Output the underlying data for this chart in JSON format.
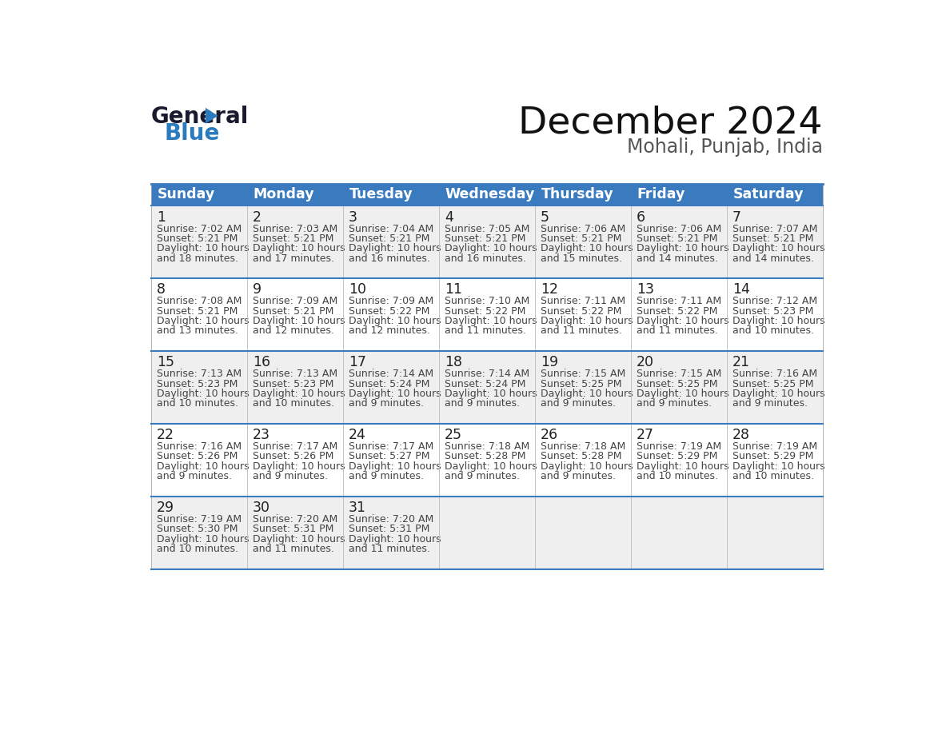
{
  "title": "December 2024",
  "subtitle": "Mohali, Punjab, India",
  "header_bg_color": "#3A7BBF",
  "header_text_color": "#FFFFFF",
  "cell_bg_even": "#EFEFEF",
  "cell_bg_odd": "#FFFFFF",
  "row_line_color": "#3A7BBF",
  "text_color": "#444444",
  "days_of_week": [
    "Sunday",
    "Monday",
    "Tuesday",
    "Wednesday",
    "Thursday",
    "Friday",
    "Saturday"
  ],
  "calendar_data": [
    [
      {
        "day": 1,
        "sunrise": "7:02 AM",
        "sunset": "5:21 PM",
        "daylight_h": "10 hours",
        "daylight_m": "and 18 minutes."
      },
      {
        "day": 2,
        "sunrise": "7:03 AM",
        "sunset": "5:21 PM",
        "daylight_h": "10 hours",
        "daylight_m": "and 17 minutes."
      },
      {
        "day": 3,
        "sunrise": "7:04 AM",
        "sunset": "5:21 PM",
        "daylight_h": "10 hours",
        "daylight_m": "and 16 minutes."
      },
      {
        "day": 4,
        "sunrise": "7:05 AM",
        "sunset": "5:21 PM",
        "daylight_h": "10 hours",
        "daylight_m": "and 16 minutes."
      },
      {
        "day": 5,
        "sunrise": "7:06 AM",
        "sunset": "5:21 PM",
        "daylight_h": "10 hours",
        "daylight_m": "and 15 minutes."
      },
      {
        "day": 6,
        "sunrise": "7:06 AM",
        "sunset": "5:21 PM",
        "daylight_h": "10 hours",
        "daylight_m": "and 14 minutes."
      },
      {
        "day": 7,
        "sunrise": "7:07 AM",
        "sunset": "5:21 PM",
        "daylight_h": "10 hours",
        "daylight_m": "and 14 minutes."
      }
    ],
    [
      {
        "day": 8,
        "sunrise": "7:08 AM",
        "sunset": "5:21 PM",
        "daylight_h": "10 hours",
        "daylight_m": "and 13 minutes."
      },
      {
        "day": 9,
        "sunrise": "7:09 AM",
        "sunset": "5:21 PM",
        "daylight_h": "10 hours",
        "daylight_m": "and 12 minutes."
      },
      {
        "day": 10,
        "sunrise": "7:09 AM",
        "sunset": "5:22 PM",
        "daylight_h": "10 hours",
        "daylight_m": "and 12 minutes."
      },
      {
        "day": 11,
        "sunrise": "7:10 AM",
        "sunset": "5:22 PM",
        "daylight_h": "10 hours",
        "daylight_m": "and 11 minutes."
      },
      {
        "day": 12,
        "sunrise": "7:11 AM",
        "sunset": "5:22 PM",
        "daylight_h": "10 hours",
        "daylight_m": "and 11 minutes."
      },
      {
        "day": 13,
        "sunrise": "7:11 AM",
        "sunset": "5:22 PM",
        "daylight_h": "10 hours",
        "daylight_m": "and 11 minutes."
      },
      {
        "day": 14,
        "sunrise": "7:12 AM",
        "sunset": "5:23 PM",
        "daylight_h": "10 hours",
        "daylight_m": "and 10 minutes."
      }
    ],
    [
      {
        "day": 15,
        "sunrise": "7:13 AM",
        "sunset": "5:23 PM",
        "daylight_h": "10 hours",
        "daylight_m": "and 10 minutes."
      },
      {
        "day": 16,
        "sunrise": "7:13 AM",
        "sunset": "5:23 PM",
        "daylight_h": "10 hours",
        "daylight_m": "and 10 minutes."
      },
      {
        "day": 17,
        "sunrise": "7:14 AM",
        "sunset": "5:24 PM",
        "daylight_h": "10 hours",
        "daylight_m": "and 9 minutes."
      },
      {
        "day": 18,
        "sunrise": "7:14 AM",
        "sunset": "5:24 PM",
        "daylight_h": "10 hours",
        "daylight_m": "and 9 minutes."
      },
      {
        "day": 19,
        "sunrise": "7:15 AM",
        "sunset": "5:25 PM",
        "daylight_h": "10 hours",
        "daylight_m": "and 9 minutes."
      },
      {
        "day": 20,
        "sunrise": "7:15 AM",
        "sunset": "5:25 PM",
        "daylight_h": "10 hours",
        "daylight_m": "and 9 minutes."
      },
      {
        "day": 21,
        "sunrise": "7:16 AM",
        "sunset": "5:25 PM",
        "daylight_h": "10 hours",
        "daylight_m": "and 9 minutes."
      }
    ],
    [
      {
        "day": 22,
        "sunrise": "7:16 AM",
        "sunset": "5:26 PM",
        "daylight_h": "10 hours",
        "daylight_m": "and 9 minutes."
      },
      {
        "day": 23,
        "sunrise": "7:17 AM",
        "sunset": "5:26 PM",
        "daylight_h": "10 hours",
        "daylight_m": "and 9 minutes."
      },
      {
        "day": 24,
        "sunrise": "7:17 AM",
        "sunset": "5:27 PM",
        "daylight_h": "10 hours",
        "daylight_m": "and 9 minutes."
      },
      {
        "day": 25,
        "sunrise": "7:18 AM",
        "sunset": "5:28 PM",
        "daylight_h": "10 hours",
        "daylight_m": "and 9 minutes."
      },
      {
        "day": 26,
        "sunrise": "7:18 AM",
        "sunset": "5:28 PM",
        "daylight_h": "10 hours",
        "daylight_m": "and 9 minutes."
      },
      {
        "day": 27,
        "sunrise": "7:19 AM",
        "sunset": "5:29 PM",
        "daylight_h": "10 hours",
        "daylight_m": "and 10 minutes."
      },
      {
        "day": 28,
        "sunrise": "7:19 AM",
        "sunset": "5:29 PM",
        "daylight_h": "10 hours",
        "daylight_m": "and 10 minutes."
      }
    ],
    [
      {
        "day": 29,
        "sunrise": "7:19 AM",
        "sunset": "5:30 PM",
        "daylight_h": "10 hours",
        "daylight_m": "and 10 minutes."
      },
      {
        "day": 30,
        "sunrise": "7:20 AM",
        "sunset": "5:31 PM",
        "daylight_h": "10 hours",
        "daylight_m": "and 11 minutes."
      },
      {
        "day": 31,
        "sunrise": "7:20 AM",
        "sunset": "5:31 PM",
        "daylight_h": "10 hours",
        "daylight_m": "and 11 minutes."
      },
      null,
      null,
      null,
      null
    ]
  ],
  "logo_color_general": "#1a1a2e",
  "logo_color_blue": "#2B7BBF",
  "logo_triangle_color": "#2B7BBF",
  "fig_width": 11.88,
  "fig_height": 9.18,
  "dpi": 100
}
